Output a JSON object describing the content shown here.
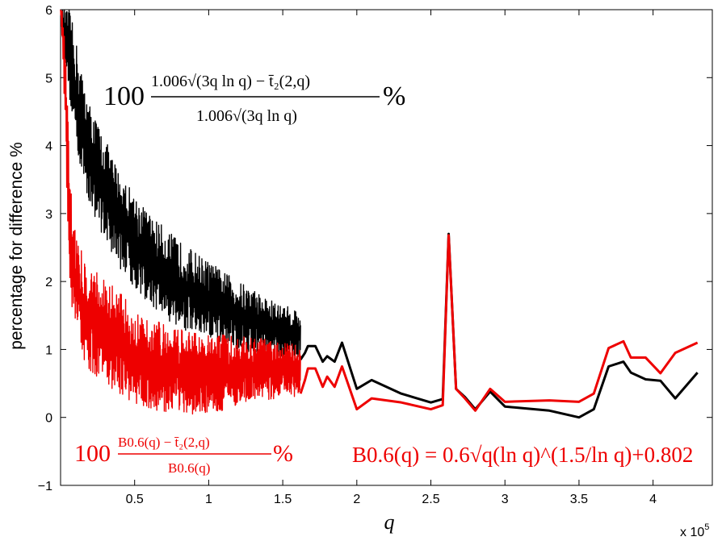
{
  "chart_data": {
    "type": "line",
    "title": "",
    "xlabel": "q",
    "ylabel": "percentage for difference %",
    "x_scale_label": "x 10",
    "x_scale_exponent": "5",
    "xlim": [
      0.0,
      4.4
    ],
    "ylim": [
      -1,
      6
    ],
    "x_tick_labels": [
      "0.5",
      "1",
      "1.5",
      "2",
      "2.5",
      "3",
      "3.5",
      "4"
    ],
    "x_ticks": [
      0.5,
      1,
      1.5,
      2,
      2.5,
      3,
      3.5,
      4
    ],
    "y_tick_labels": [
      "−1",
      "0",
      "1",
      "2",
      "3",
      "4",
      "5",
      "6"
    ],
    "y_ticks": [
      -1,
      0,
      1,
      2,
      3,
      4,
      5,
      6
    ],
    "series": [
      {
        "name": "black",
        "color": "#000000",
        "annotation": {
          "prefix": "100",
          "numerator": "1.006√(3q ln q) − t̄₂(2,q)",
          "denominator": "1.006√(3q ln q)",
          "suffix": "%"
        },
        "noisy_until": 1.62,
        "envelope": {
          "x": [
            0.0,
            0.03,
            0.06,
            0.1,
            0.15,
            0.2,
            0.3,
            0.4,
            0.5,
            0.6,
            0.7,
            0.8,
            0.9,
            1.0,
            1.1,
            1.2,
            1.3,
            1.4,
            1.5,
            1.6,
            1.62
          ],
          "upper": [
            6.0,
            6.0,
            6.0,
            5.6,
            5.0,
            4.6,
            4.1,
            3.6,
            3.3,
            3.0,
            2.8,
            2.6,
            2.45,
            2.3,
            2.15,
            2.0,
            1.9,
            1.75,
            1.65,
            1.6,
            1.55
          ],
          "lower": [
            6.0,
            5.3,
            4.7,
            4.0,
            3.5,
            3.1,
            2.6,
            2.2,
            1.9,
            1.65,
            1.45,
            1.3,
            1.2,
            1.1,
            1.05,
            1.0,
            0.95,
            0.9,
            0.88,
            0.86,
            0.85
          ]
        },
        "x": [
          1.62,
          1.65,
          1.67,
          1.72,
          1.77,
          1.8,
          1.85,
          1.9,
          2.0,
          2.1,
          2.3,
          2.5,
          2.58,
          2.62,
          2.67,
          2.73,
          2.8,
          2.9,
          3.0,
          3.3,
          3.5,
          3.6,
          3.7,
          3.8,
          3.85,
          3.95,
          4.05,
          4.15,
          4.3
        ],
        "y": [
          0.85,
          0.95,
          1.05,
          1.05,
          0.82,
          0.9,
          0.82,
          1.1,
          0.42,
          0.55,
          0.35,
          0.22,
          0.27,
          2.7,
          0.42,
          0.3,
          0.12,
          0.38,
          0.16,
          0.1,
          0.0,
          0.12,
          0.75,
          0.82,
          0.66,
          0.56,
          0.54,
          0.28,
          0.66
        ]
      },
      {
        "name": "red",
        "color": "#ee0000",
        "annotation": {
          "prefix": "100",
          "numerator": "B0.6(q) − t̄₂(2,q)",
          "denominator": "B0.6(q)",
          "suffix": "%"
        },
        "noisy_until": 1.62,
        "envelope": {
          "x": [
            0.0,
            0.02,
            0.04,
            0.06,
            0.08,
            0.1,
            0.15,
            0.2,
            0.3,
            0.4,
            0.5,
            0.6,
            0.7,
            0.8,
            0.9,
            1.0,
            1.1,
            1.2,
            1.3,
            1.4,
            1.5,
            1.6,
            1.62
          ],
          "upper": [
            6.0,
            6.0,
            5.5,
            4.0,
            3.2,
            2.8,
            2.4,
            2.3,
            2.05,
            1.85,
            1.65,
            1.5,
            1.38,
            1.3,
            1.25,
            1.22,
            1.22,
            1.2,
            1.18,
            1.15,
            1.12,
            1.1,
            1.05
          ],
          "lower": [
            6.0,
            5.0,
            3.2,
            2.0,
            1.5,
            1.2,
            0.85,
            0.65,
            0.45,
            0.3,
            0.2,
            0.12,
            0.08,
            0.05,
            0.03,
            0.05,
            0.1,
            0.15,
            0.2,
            0.25,
            0.28,
            0.3,
            0.32
          ]
        },
        "x": [
          1.62,
          1.65,
          1.67,
          1.72,
          1.77,
          1.8,
          1.85,
          1.9,
          2.0,
          2.1,
          2.3,
          2.5,
          2.58,
          2.62,
          2.67,
          2.73,
          2.8,
          2.9,
          3.0,
          3.3,
          3.5,
          3.6,
          3.7,
          3.8,
          3.85,
          3.95,
          4.05,
          4.15,
          4.3
        ],
        "y": [
          0.35,
          0.55,
          0.72,
          0.72,
          0.45,
          0.6,
          0.45,
          0.75,
          0.12,
          0.28,
          0.22,
          0.12,
          0.18,
          2.68,
          0.42,
          0.28,
          0.1,
          0.42,
          0.23,
          0.25,
          0.23,
          0.35,
          1.02,
          1.12,
          0.88,
          0.88,
          0.65,
          0.95,
          1.1
        ]
      }
    ],
    "formula_note": {
      "lhs": "B0.6(q) = 0.6√q(ln q)^(1.5/ln q)+0.802",
      "color": "#ee0000"
    },
    "grid": false
  }
}
